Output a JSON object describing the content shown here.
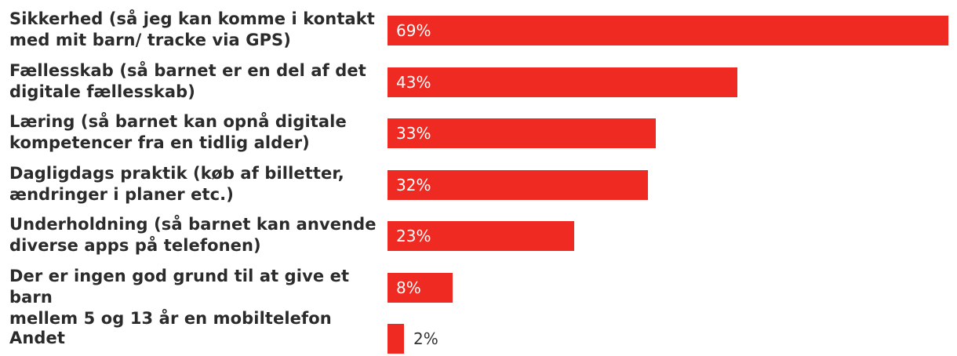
{
  "chart_data": {
    "type": "bar",
    "orientation": "horizontal",
    "title": "",
    "xlabel": "",
    "ylabel": "",
    "xlim": [
      0,
      69
    ],
    "categories": [
      "Sikkerhed (så jeg kan komme i kontakt\nmed mit barn/ tracke via GPS)",
      "Fællesskab (så barnet er en del af det\ndigitale fællesskab)",
      "Læring (så barnet kan opnå digitale\nkompetencer fra en tidlig alder)",
      "Dagligdags praktik (køb af billetter,\nændringer i planer etc.)",
      "Underholdning (så barnet kan anvende\ndiverse apps på telefonen)",
      "Der er ingen god grund til at give et barn\nmellem 5 og 13 år en mobiltelefon",
      "Andet"
    ],
    "values": [
      69,
      43,
      33,
      32,
      23,
      8,
      2
    ],
    "value_labels": [
      "69%",
      "43%",
      "33%",
      "32%",
      "23%",
      "8%",
      "2%"
    ],
    "grid": false,
    "legend": "none"
  },
  "colors": {
    "bar": "#ee2a22",
    "label_text": "#2b2b2b",
    "value_inside": "#ffffff",
    "value_outside": "#333333"
  }
}
